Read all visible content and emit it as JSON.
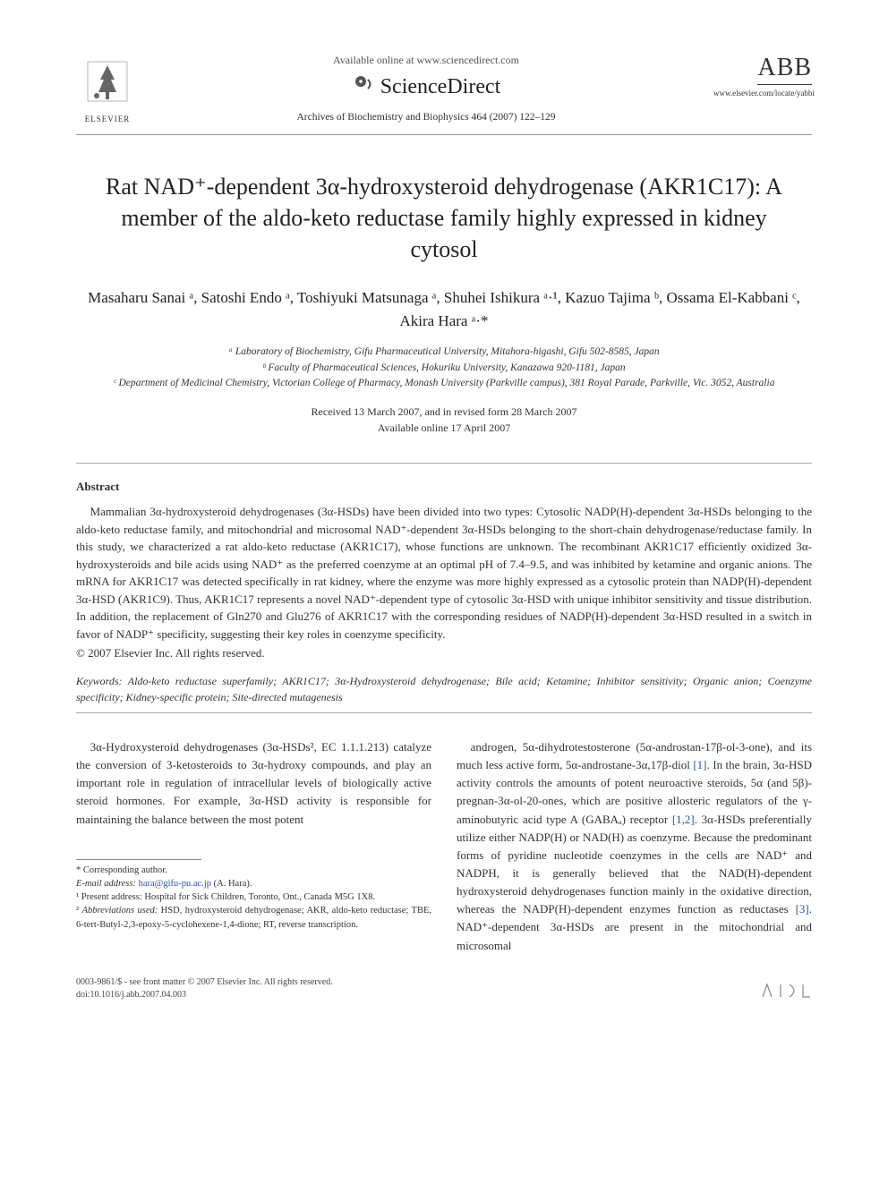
{
  "header": {
    "available_online": "Available online at www.sciencedirect.com",
    "sciencedirect": "ScienceDirect",
    "journal_ref": "Archives of Biochemistry and Biophysics 464 (2007) 122–129",
    "elsevier_label": "ELSEVIER",
    "abb_label": "ABB",
    "journal_url": "www.elsevier.com/locate/yabbi"
  },
  "title": "Rat NAD⁺-dependent 3α-hydroxysteroid dehydrogenase (AKR1C17): A member of the aldo-keto reductase family highly expressed in kidney cytosol",
  "authors_html": "Masaharu Sanai ᵃ, Satoshi Endo ᵃ, Toshiyuki Matsunaga ᵃ, Shuhei Ishikura ᵃ·¹, Kazuo Tajima ᵇ, Ossama El-Kabbani ᶜ, Akira Hara ᵃ·*",
  "affiliations": {
    "a": "ᵃ Laboratory of Biochemistry, Gifu Pharmaceutical University, Mitahora-higashi, Gifu 502-8585, Japan",
    "b": "ᵇ Faculty of Pharmaceutical Sciences, Hokuriku University, Kanazawa 920-1181, Japan",
    "c": "ᶜ Department of Medicinal Chemistry, Victorian College of Pharmacy, Monash University (Parkville campus), 381 Royal Parade, Parkville, Vic. 3052, Australia"
  },
  "dates": {
    "received": "Received 13 March 2007, and in revised form 28 March 2007",
    "online": "Available online 17 April 2007"
  },
  "abstract": {
    "heading": "Abstract",
    "body": "Mammalian 3α-hydroxysteroid dehydrogenases (3α-HSDs) have been divided into two types: Cytosolic NADP(H)-dependent 3α-HSDs belonging to the aldo-keto reductase family, and mitochondrial and microsomal NAD⁺-dependent 3α-HSDs belonging to the short-chain dehydrogenase/reductase family. In this study, we characterized a rat aldo-keto reductase (AKR1C17), whose functions are unknown. The recombinant AKR1C17 efficiently oxidized 3α-hydroxysteroids and bile acids using NAD⁺ as the preferred coenzyme at an optimal pH of 7.4–9.5, and was inhibited by ketamine and organic anions. The mRNA for AKR1C17 was detected specifically in rat kidney, where the enzyme was more highly expressed as a cytosolic protein than NADP(H)-dependent 3α-HSD (AKR1C9). Thus, AKR1C17 represents a novel NAD⁺-dependent type of cytosolic 3α-HSD with unique inhibitor sensitivity and tissue distribution. In addition, the replacement of Gln270 and Glu276 of AKR1C17 with the corresponding residues of NADP(H)-dependent 3α-HSD resulted in a switch in favor of NADP⁺ specificity, suggesting their key roles in coenzyme specificity.",
    "copyright": "© 2007 Elsevier Inc. All rights reserved."
  },
  "keywords": {
    "label": "Keywords:",
    "list": "Aldo-keto reductase superfamily; AKR1C17; 3α-Hydroxysteroid dehydrogenase; Bile acid; Ketamine; Inhibitor sensitivity; Organic anion; Coenzyme specificity; Kidney-specific protein; Site-directed mutagenesis"
  },
  "body": {
    "col1": "3α-Hydroxysteroid dehydrogenases (3α-HSDs², EC 1.1.1.213) catalyze the conversion of 3-ketosteroids to 3α-hydroxy compounds, and play an important role in regulation of intracellular levels of biologically active steroid hormones. For example, 3α-HSD activity is responsible for maintaining the balance between the most potent",
    "col2": "androgen, 5α-dihydrotestosterone (5α-androstan-17β-ol-3-one), and its much less active form, 5α-androstane-3α,17β-diol [1]. In the brain, 3α-HSD activity controls the amounts of potent neuroactive steroids, 5α (and 5β)-pregnan-3α-ol-20-ones, which are positive allosteric regulators of the γ-aminobutyric acid type A (GABAₐ) receptor [1,2]. 3α-HSDs preferentially utilize either NADP(H) or NAD(H) as coenzyme. Because the predominant forms of pyridine nucleotide coenzymes in the cells are NAD⁺ and NADPH, it is generally believed that the NAD(H)-dependent hydroxysteroid dehydrogenases function mainly in the oxidative direction, whereas the NADP(H)-dependent enzymes function as reductases [3]. NAD⁺-dependent 3α-HSDs are present in the mitochondrial and microsomal"
  },
  "footnotes": {
    "corr": "* Corresponding author.",
    "email_label": "E-mail address:",
    "email": "hara@gifu-pu.ac.jp",
    "email_who": "(A. Hara).",
    "n1": "¹ Present address: Hospital for Sick Children, Toronto, Ont., Canada M5G 1X8.",
    "n2": "² Abbreviations used: HSD, hydroxysteroid dehydrogenase; AKR, aldo-keto reductase; TBE, 6-tert-Butyl-2,3-epoxy-5-cyclohexene-1,4-dione; RT, reverse transcription."
  },
  "footer": {
    "front_matter": "0003-9861/$ - see front matter © 2007 Elsevier Inc. All rights reserved.",
    "doi": "doi:10.1016/j.abb.2007.04.003"
  },
  "colors": {
    "text": "#333333",
    "link": "#2255aa",
    "rule": "#999999",
    "bg": "#ffffff"
  }
}
